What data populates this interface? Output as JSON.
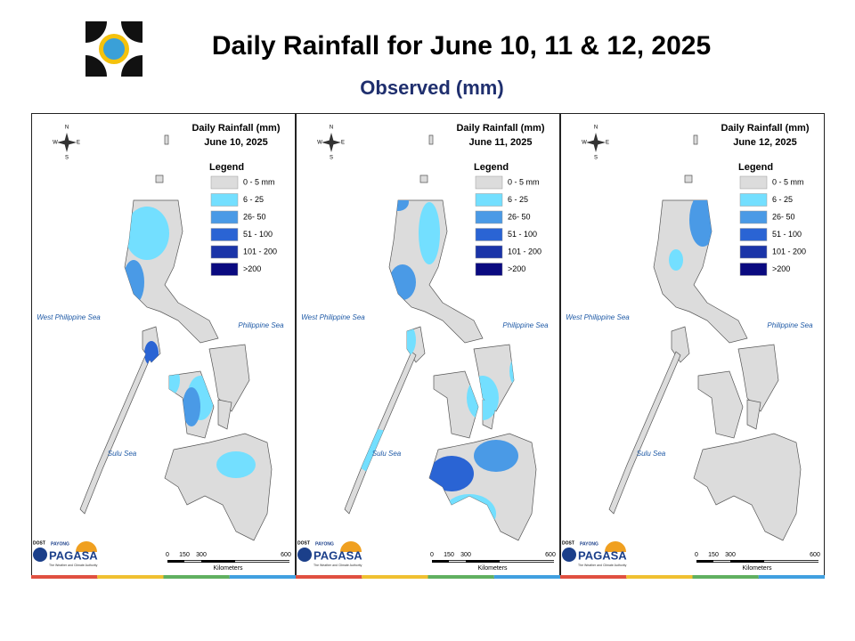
{
  "header": {
    "title": "Daily Rainfall for June 10, 11 & 12, 2025",
    "subtitle": "Observed (mm)"
  },
  "panels": [
    {
      "heading": "Daily Rainfall (mm)",
      "date": "June 10, 2025"
    },
    {
      "heading": "Daily Rainfall (mm)",
      "date": "June 11, 2025"
    },
    {
      "heading": "Daily Rainfall (mm)",
      "date": "June 12, 2025"
    }
  ],
  "legend": {
    "title": "Legend",
    "items": [
      "0 - 5 mm",
      "6 - 25",
      "26- 50",
      "51 - 100",
      "101 - 200",
      ">200"
    ],
    "colors": [
      "#dcdcdc",
      "#73dfff",
      "#4a9ae6",
      "#2a64d4",
      "#1a34a8",
      "#0a0a80"
    ]
  },
  "seas": {
    "west": "West Philippine Sea",
    "east": "Philippine Sea",
    "south": "Sulu Sea"
  },
  "scale": {
    "ticks": [
      "0",
      "150",
      "300",
      "600"
    ],
    "unit": "Kilometers"
  },
  "compass": {
    "n": "N",
    "w": "W",
    "e": "E",
    "s": "S"
  },
  "logo": {
    "agency": "DOST",
    "program": "PAYONG",
    "name": "PAGASA",
    "tagline": "The Weather and Climate Authority"
  }
}
